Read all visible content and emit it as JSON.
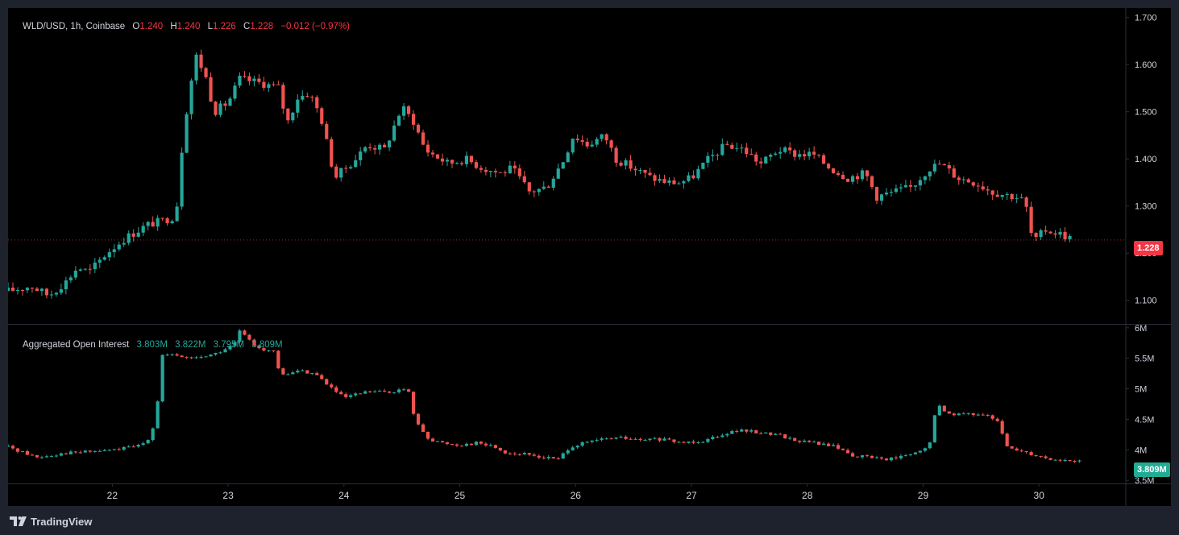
{
  "header": {
    "symbol": "WLD/USD, 1h, Coinbase",
    "open_label": "O",
    "open": "1.240",
    "high_label": "H",
    "high": "1.240",
    "low_label": "L",
    "low": "1.226",
    "close_label": "C",
    "close": "1.228",
    "change": "−0.012 (−0.97%)"
  },
  "indicator": {
    "name": "Aggregated Open Interest",
    "values": [
      "3.803M",
      "3.822M",
      "3.795M",
      "3.809M"
    ]
  },
  "last_price_label": "1.228",
  "last_oi_label": "3.809M",
  "brand": "TradingView",
  "colors": {
    "up": "#26a69a",
    "down": "#ef5350",
    "background": "#000000",
    "grid": "#2a2e39",
    "text": "#d1d4dc"
  },
  "chart_data": [
    {
      "type": "candlestick",
      "title": "WLD/USD, 1h, Coinbase",
      "ylim": [
        1.05,
        1.72
      ],
      "y_ticks": [
        "1.100",
        "1.200",
        "1.300",
        "1.400",
        "1.500",
        "1.600",
        "1.700"
      ],
      "x_ticks": [
        "22",
        "23",
        "24",
        "25",
        "26",
        "27",
        "28",
        "29",
        "30"
      ],
      "x_range_days": [
        21.1,
        30.75
      ],
      "keypoints": [
        [
          21.1,
          1.12
        ],
        [
          21.3,
          1.13
        ],
        [
          21.45,
          1.11
        ],
        [
          21.6,
          1.14
        ],
        [
          21.7,
          1.17
        ],
        [
          21.8,
          1.16
        ],
        [
          21.95,
          1.2
        ],
        [
          22.1,
          1.23
        ],
        [
          22.3,
          1.26
        ],
        [
          22.45,
          1.27
        ],
        [
          22.55,
          1.28
        ],
        [
          22.6,
          1.42
        ],
        [
          22.65,
          1.52
        ],
        [
          22.72,
          1.62
        ],
        [
          22.8,
          1.58
        ],
        [
          22.88,
          1.5
        ],
        [
          23.0,
          1.52
        ],
        [
          23.1,
          1.57
        ],
        [
          23.3,
          1.56
        ],
        [
          23.45,
          1.55
        ],
        [
          23.5,
          1.47
        ],
        [
          23.6,
          1.53
        ],
        [
          23.7,
          1.54
        ],
        [
          23.8,
          1.49
        ],
        [
          23.92,
          1.36
        ],
        [
          24.1,
          1.4
        ],
        [
          24.2,
          1.43
        ],
        [
          24.35,
          1.42
        ],
        [
          24.5,
          1.51
        ],
        [
          24.6,
          1.48
        ],
        [
          24.7,
          1.42
        ],
        [
          24.9,
          1.39
        ],
        [
          25.05,
          1.4
        ],
        [
          25.2,
          1.38
        ],
        [
          25.35,
          1.37
        ],
        [
          25.45,
          1.38
        ],
        [
          25.6,
          1.33
        ],
        [
          25.75,
          1.34
        ],
        [
          25.9,
          1.4
        ],
        [
          25.98,
          1.45
        ],
        [
          26.1,
          1.43
        ],
        [
          26.25,
          1.45
        ],
        [
          26.35,
          1.4
        ],
        [
          26.5,
          1.38
        ],
        [
          26.65,
          1.36
        ],
        [
          26.8,
          1.35
        ],
        [
          26.9,
          1.35
        ],
        [
          27.0,
          1.36
        ],
        [
          27.15,
          1.4
        ],
        [
          27.3,
          1.43
        ],
        [
          27.45,
          1.42
        ],
        [
          27.6,
          1.39
        ],
        [
          27.75,
          1.42
        ],
        [
          27.9,
          1.41
        ],
        [
          28.05,
          1.41
        ],
        [
          28.2,
          1.38
        ],
        [
          28.35,
          1.36
        ],
        [
          28.5,
          1.37
        ],
        [
          28.6,
          1.32
        ],
        [
          28.75,
          1.33
        ],
        [
          28.9,
          1.34
        ],
        [
          29.05,
          1.38
        ],
        [
          29.15,
          1.39
        ],
        [
          29.3,
          1.36
        ],
        [
          29.45,
          1.35
        ],
        [
          29.6,
          1.33
        ],
        [
          29.8,
          1.32
        ],
        [
          29.88,
          1.31
        ],
        [
          29.95,
          1.22
        ],
        [
          30.05,
          1.25
        ],
        [
          30.2,
          1.24
        ],
        [
          30.3,
          1.228
        ]
      ]
    },
    {
      "type": "candlestick",
      "title": "Aggregated Open Interest",
      "ylim": [
        3.45,
        6.05
      ],
      "y_ticks": [
        "3.5M",
        "4M",
        "4.5M",
        "5M",
        "5.5M",
        "6M"
      ],
      "keypoints": [
        [
          21.1,
          4.05
        ],
        [
          21.2,
          3.98
        ],
        [
          21.35,
          3.88
        ],
        [
          21.6,
          3.95
        ],
        [
          21.8,
          3.97
        ],
        [
          22.0,
          4.0
        ],
        [
          22.2,
          4.05
        ],
        [
          22.3,
          4.15
        ],
        [
          22.38,
          4.5
        ],
        [
          22.42,
          5.55
        ],
        [
          22.5,
          5.55
        ],
        [
          22.7,
          5.5
        ],
        [
          22.9,
          5.58
        ],
        [
          23.05,
          5.72
        ],
        [
          23.1,
          5.95
        ],
        [
          23.2,
          5.75
        ],
        [
          23.3,
          5.65
        ],
        [
          23.4,
          5.6
        ],
        [
          23.45,
          5.2
        ],
        [
          23.6,
          5.3
        ],
        [
          23.75,
          5.25
        ],
        [
          23.9,
          5.0
        ],
        [
          24.0,
          4.85
        ],
        [
          24.2,
          4.95
        ],
        [
          24.4,
          4.95
        ],
        [
          24.55,
          5.0
        ],
        [
          24.62,
          4.45
        ],
        [
          24.75,
          4.15
        ],
        [
          24.9,
          4.1
        ],
        [
          25.0,
          4.08
        ],
        [
          25.15,
          4.12
        ],
        [
          25.3,
          4.05
        ],
        [
          25.4,
          3.95
        ],
        [
          25.6,
          3.92
        ],
        [
          25.7,
          3.88
        ],
        [
          25.85,
          3.85
        ],
        [
          25.95,
          4.05
        ],
        [
          26.1,
          4.12
        ],
        [
          26.25,
          4.18
        ],
        [
          26.4,
          4.2
        ],
        [
          26.55,
          4.15
        ],
        [
          26.7,
          4.18
        ],
        [
          26.9,
          4.12
        ],
        [
          27.1,
          4.15
        ],
        [
          27.25,
          4.25
        ],
        [
          27.4,
          4.32
        ],
        [
          27.6,
          4.28
        ],
        [
          27.75,
          4.25
        ],
        [
          27.9,
          4.15
        ],
        [
          28.05,
          4.12
        ],
        [
          28.25,
          4.05
        ],
        [
          28.4,
          3.9
        ],
        [
          28.55,
          3.88
        ],
        [
          28.7,
          3.85
        ],
        [
          28.85,
          3.9
        ],
        [
          28.95,
          3.95
        ],
        [
          29.05,
          4.05
        ],
        [
          29.12,
          4.75
        ],
        [
          29.2,
          4.6
        ],
        [
          29.35,
          4.58
        ],
        [
          29.5,
          4.6
        ],
        [
          29.65,
          4.45
        ],
        [
          29.72,
          4.05
        ],
        [
          29.85,
          3.98
        ],
        [
          30.0,
          3.9
        ],
        [
          30.1,
          3.85
        ],
        [
          30.25,
          3.82
        ],
        [
          30.35,
          3.809
        ]
      ]
    }
  ]
}
